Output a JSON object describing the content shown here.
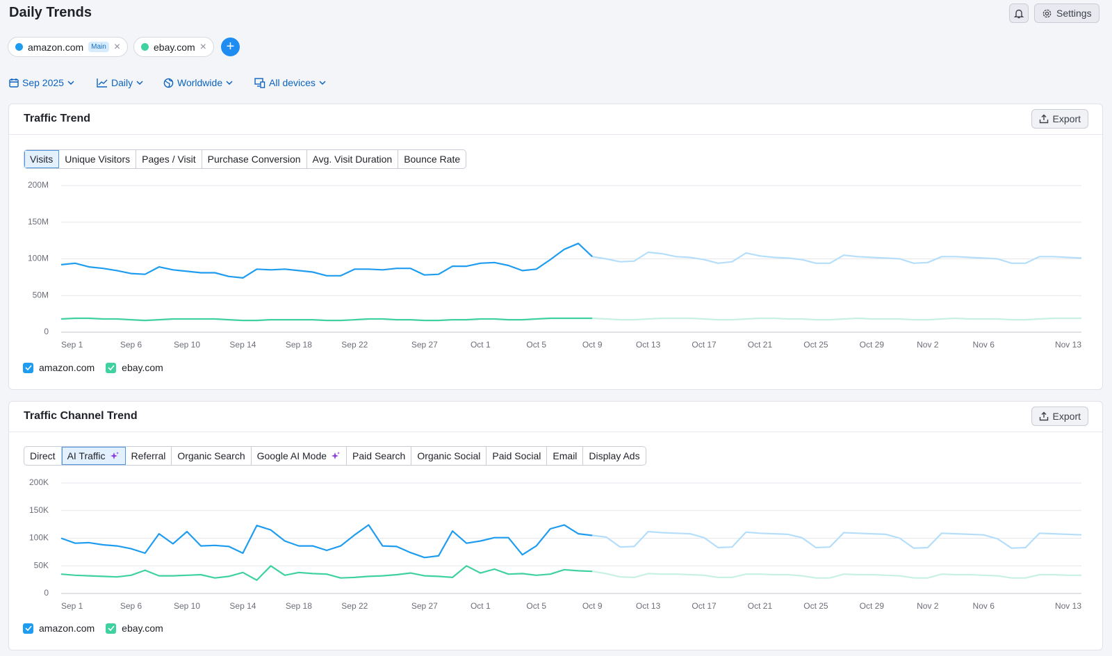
{
  "header": {
    "title": "Daily Trends",
    "settings": "Settings"
  },
  "competitors": [
    {
      "name": "amazon.com",
      "badge": "Main"
    },
    {
      "name": "ebay.com"
    }
  ],
  "filters": [
    "Sep 2025",
    "Daily",
    "Worldwide",
    "All devices"
  ],
  "chart_data": [
    {
      "type": "line",
      "title": "Traffic Trend",
      "export": "Export",
      "tabs": [
        "Visits",
        "Unique Visitors",
        "Pages / Visit",
        "Purchase Conversion",
        "Avg. Visit Duration",
        "Bounce Rate"
      ],
      "categories": [
        "Sep 1",
        null,
        null,
        null,
        null,
        "Sep 6",
        null,
        null,
        null,
        "Sep 10",
        null,
        null,
        null,
        "Sep 14",
        null,
        null,
        null,
        "Sep 18",
        null,
        null,
        null,
        "Sep 22",
        null,
        null,
        null,
        null,
        "Sep 27",
        null,
        null,
        null,
        "Oct 1",
        null,
        null,
        null,
        "Oct 5",
        null,
        null,
        null,
        "Oct 9",
        null,
        null,
        null,
        "Oct 13",
        null,
        null,
        null,
        "Oct 17",
        null,
        null,
        null,
        "Oct 21",
        null,
        null,
        null,
        "Oct 25",
        null,
        null,
        null,
        "Oct 29",
        null,
        null,
        null,
        "Nov 2",
        null,
        null,
        null,
        "Nov 6",
        null,
        null,
        null,
        null,
        null,
        null,
        "Nov 13"
      ],
      "ylim": [
        0,
        200
      ],
      "yticks": [
        0,
        {
          "value": 50,
          "label": "50M"
        },
        {
          "value": 100,
          "label": "100M"
        },
        {
          "value": 150,
          "label": "150M"
        },
        {
          "value": 200,
          "label": "200M"
        }
      ],
      "grid": true,
      "series": [
        {
          "name": "amazon.com",
          "color": "#1e9cf0",
          "forecast_color": "#b5defa",
          "values": [
            92,
            94,
            89,
            87,
            84,
            80,
            79,
            89,
            85,
            83,
            81,
            81,
            76,
            74,
            86,
            85,
            86,
            84,
            82,
            77,
            77,
            86,
            86,
            85,
            87,
            87,
            78,
            79,
            90,
            90,
            94,
            95,
            91,
            84,
            86,
            99,
            113,
            121,
            103,
            null,
            null,
            null,
            null,
            null,
            null,
            null,
            null,
            null,
            null,
            null,
            null,
            null,
            null,
            null,
            null,
            null,
            null,
            null,
            null,
            null,
            null,
            null,
            null,
            null,
            null,
            null,
            null,
            null,
            null,
            null,
            null,
            null,
            null,
            null
          ],
          "forecast_values": [
            null,
            null,
            null,
            null,
            null,
            null,
            null,
            null,
            null,
            null,
            null,
            null,
            null,
            null,
            null,
            null,
            null,
            null,
            null,
            null,
            null,
            null,
            null,
            null,
            null,
            null,
            null,
            null,
            null,
            null,
            null,
            null,
            null,
            null,
            null,
            null,
            null,
            null,
            103,
            100,
            96,
            97,
            109,
            107,
            103,
            102,
            99,
            94,
            96,
            108,
            104,
            102,
            101,
            99,
            94,
            94,
            105,
            103,
            102,
            101,
            100,
            94,
            95,
            103,
            103,
            102,
            101,
            100,
            94,
            94,
            103,
            103,
            102,
            101
          ]
        },
        {
          "name": "ebay.com",
          "color": "#3fd19f",
          "forecast_color": "#c8f1e3",
          "values": [
            18,
            19,
            19,
            18,
            18,
            17,
            16,
            17,
            18,
            18,
            18,
            18,
            17,
            16,
            16,
            17,
            17,
            17,
            17,
            16,
            16,
            17,
            18,
            18,
            17,
            17,
            16,
            16,
            17,
            17,
            18,
            18,
            17,
            17,
            18,
            19,
            19,
            19,
            19,
            null,
            null,
            null,
            null,
            null,
            null,
            null,
            null,
            null,
            null,
            null,
            null,
            null,
            null,
            null,
            null,
            null,
            null,
            null,
            null,
            null,
            null,
            null,
            null,
            null,
            null,
            null,
            null,
            null,
            null,
            null,
            null,
            null,
            null,
            null
          ],
          "forecast_values": [
            null,
            null,
            null,
            null,
            null,
            null,
            null,
            null,
            null,
            null,
            null,
            null,
            null,
            null,
            null,
            null,
            null,
            null,
            null,
            null,
            null,
            null,
            null,
            null,
            null,
            null,
            null,
            null,
            null,
            null,
            null,
            null,
            null,
            null,
            null,
            null,
            null,
            null,
            19,
            18,
            17,
            17,
            18,
            19,
            19,
            19,
            18,
            17,
            17,
            18,
            19,
            19,
            18,
            18,
            17,
            17,
            18,
            19,
            18,
            18,
            18,
            17,
            17,
            18,
            19,
            18,
            18,
            18,
            17,
            17,
            18,
            19,
            19,
            19
          ]
        }
      ]
    },
    {
      "type": "line",
      "title": "Traffic Channel Trend",
      "export": "Export",
      "tabs": [
        "Direct",
        "AI Traffic",
        "Referral",
        "Organic Search",
        "Google AI Mode",
        "Paid Search",
        "Organic Social",
        "Paid Social",
        "Email",
        "Display Ads"
      ],
      "categories": [
        "Sep 1",
        null,
        null,
        null,
        null,
        "Sep 6",
        null,
        null,
        null,
        "Sep 10",
        null,
        null,
        null,
        "Sep 14",
        null,
        null,
        null,
        "Sep 18",
        null,
        null,
        null,
        "Sep 22",
        null,
        null,
        null,
        null,
        "Sep 27",
        null,
        null,
        null,
        "Oct 1",
        null,
        null,
        null,
        "Oct 5",
        null,
        null,
        null,
        "Oct 9",
        null,
        null,
        null,
        "Oct 13",
        null,
        null,
        null,
        "Oct 17",
        null,
        null,
        null,
        "Oct 21",
        null,
        null,
        null,
        "Oct 25",
        null,
        null,
        null,
        "Oct 29",
        null,
        null,
        null,
        "Nov 2",
        null,
        null,
        null,
        "Nov 6",
        null,
        null,
        null,
        null,
        null,
        null,
        "Nov 13"
      ],
      "ylim": [
        0,
        200
      ],
      "yticks": [
        0,
        {
          "value": 50,
          "label": "50K"
        },
        {
          "value": 100,
          "label": "100K"
        },
        {
          "value": 150,
          "label": "150K"
        },
        {
          "value": 200,
          "label": "200K"
        }
      ],
      "grid": true,
      "series": [
        {
          "name": "amazon.com",
          "color": "#1e9cf0",
          "forecast_color": "#b5defa",
          "values": [
            100,
            91,
            92,
            88,
            86,
            81,
            73,
            108,
            90,
            112,
            86,
            87,
            85,
            73,
            123,
            115,
            95,
            86,
            86,
            78,
            86,
            106,
            124,
            86,
            85,
            74,
            65,
            68,
            113,
            91,
            95,
            101,
            101,
            70,
            86,
            117,
            124,
            108,
            105,
            null,
            null,
            null,
            null,
            null,
            null,
            null,
            null,
            null,
            null,
            null,
            null,
            null,
            null,
            null,
            null,
            null,
            null,
            null,
            null,
            null,
            null,
            null,
            null,
            null,
            null,
            null,
            null,
            null,
            null,
            null,
            null,
            null,
            null,
            null
          ],
          "forecast_values": [
            null,
            null,
            null,
            null,
            null,
            null,
            null,
            null,
            null,
            null,
            null,
            null,
            null,
            null,
            null,
            null,
            null,
            null,
            null,
            null,
            null,
            null,
            null,
            null,
            null,
            null,
            null,
            null,
            null,
            null,
            null,
            null,
            null,
            null,
            null,
            null,
            null,
            null,
            105,
            102,
            84,
            85,
            112,
            110,
            109,
            108,
            101,
            83,
            84,
            111,
            109,
            108,
            107,
            101,
            83,
            84,
            110,
            109,
            108,
            107,
            100,
            82,
            83,
            109,
            108,
            107,
            106,
            99,
            82,
            83,
            109,
            108,
            107,
            106
          ]
        },
        {
          "name": "ebay.com",
          "color": "#3fd19f",
          "forecast_color": "#c8f1e3",
          "values": [
            35,
            33,
            32,
            31,
            30,
            33,
            42,
            32,
            32,
            33,
            34,
            28,
            31,
            38,
            24,
            50,
            33,
            38,
            36,
            35,
            28,
            29,
            31,
            32,
            34,
            37,
            32,
            31,
            29,
            50,
            37,
            44,
            35,
            36,
            33,
            35,
            43,
            41,
            40,
            null,
            null,
            null,
            null,
            null,
            null,
            null,
            null,
            null,
            null,
            null,
            null,
            null,
            null,
            null,
            null,
            null,
            null,
            null,
            null,
            null,
            null,
            null,
            null,
            null,
            null,
            null,
            null,
            null,
            null,
            null,
            null,
            null,
            null,
            null
          ],
          "forecast_values": [
            null,
            null,
            null,
            null,
            null,
            null,
            null,
            null,
            null,
            null,
            null,
            null,
            null,
            null,
            null,
            null,
            null,
            null,
            null,
            null,
            null,
            null,
            null,
            null,
            null,
            null,
            null,
            null,
            null,
            null,
            null,
            null,
            null,
            null,
            null,
            null,
            null,
            null,
            40,
            36,
            30,
            29,
            36,
            35,
            35,
            34,
            33,
            29,
            29,
            35,
            35,
            34,
            34,
            32,
            28,
            28,
            35,
            34,
            34,
            33,
            32,
            28,
            28,
            35,
            34,
            34,
            33,
            32,
            28,
            28,
            34,
            34,
            33,
            33
          ]
        }
      ]
    }
  ]
}
